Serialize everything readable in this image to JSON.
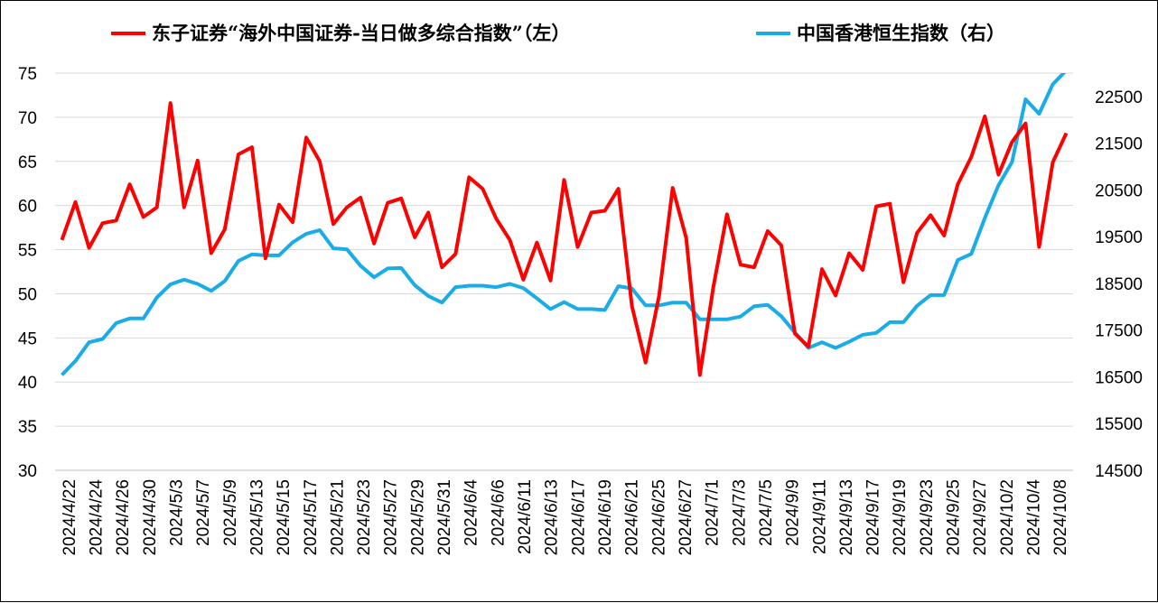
{
  "chart_data": {
    "type": "line",
    "title": "",
    "xlabel": "",
    "ylabel": "",
    "x_tick_labels": [
      "2024/4/22",
      "2024/4/24",
      "2024/4/26",
      "2024/4/30",
      "2024/5/3",
      "2024/5/7",
      "2024/5/9",
      "2024/5/13",
      "2024/5/15",
      "2024/5/17",
      "2024/5/21",
      "2024/5/23",
      "2024/5/27",
      "2024/5/29",
      "2024/5/31",
      "2024/6/4",
      "2024/6/6",
      "2024/6/11",
      "2024/6/13",
      "2024/6/17",
      "2024/6/19",
      "2024/6/21",
      "2024/6/25",
      "2024/6/27",
      "2024/7/1",
      "2024/7/3",
      "2024/7/5",
      "2024/9/9",
      "2024/9/11",
      "2024/9/13",
      "2024/9/17",
      "2024/9/19",
      "2024/9/23",
      "2024/9/25",
      "2024/9/27",
      "2024/10/2",
      "2024/10/4",
      "2024/10/8"
    ],
    "y_left": {
      "range": [
        30,
        75
      ],
      "ticks": [
        "30",
        "35",
        "40",
        "45",
        "50",
        "55",
        "60",
        "65",
        "70",
        "75"
      ]
    },
    "y_right": {
      "range": [
        14500,
        23000
      ],
      "ticks": [
        "14500",
        "15500",
        "16500",
        "17500",
        "18500",
        "19500",
        "20500",
        "21500",
        "22500"
      ]
    },
    "grid": true,
    "legend_position": "top",
    "series": [
      {
        "name": "东子证券“海外中国证券-当日做多综合指数”（左）",
        "axis": "left",
        "color": "#ff0000",
        "values": [
          56.1,
          60.4,
          55.2,
          58.0,
          58.3,
          62.4,
          58.7,
          59.8,
          71.6,
          59.8,
          65.1,
          54.6,
          57.3,
          65.8,
          66.6,
          54.0,
          60.1,
          58.1,
          67.7,
          65.0,
          57.9,
          59.8,
          60.9,
          55.7,
          60.3,
          60.8,
          56.4,
          59.2,
          53.0,
          54.5,
          63.2,
          61.9,
          58.5,
          56.1,
          51.6,
          55.8,
          51.5,
          62.9,
          55.3,
          59.2,
          59.4,
          61.9,
          48.6,
          42.2,
          49.8,
          62.0,
          56.3,
          40.8,
          50.8,
          59.0,
          53.3,
          53.0,
          57.1,
          55.5,
          45.5,
          44.0,
          52.8,
          49.8,
          54.6,
          52.7,
          59.9,
          60.2,
          51.3,
          56.9,
          58.9,
          56.6,
          62.4,
          65.5,
          70.1,
          63.5,
          67.2,
          69.3,
          55.3,
          64.9,
          68.2
        ]
      },
      {
        "name": "中国香港恒生指数（右）",
        "axis": "right",
        "color": "#1aace7",
        "values": [
          16540,
          16840,
          17240,
          17310,
          17650,
          17750,
          17750,
          18200,
          18480,
          18580,
          18490,
          18340,
          18550,
          18980,
          19120,
          19100,
          19100,
          19380,
          19560,
          19640,
          19250,
          19230,
          18880,
          18630,
          18820,
          18830,
          18460,
          18230,
          18090,
          18420,
          18450,
          18450,
          18420,
          18490,
          18400,
          18180,
          17950,
          18100,
          17950,
          17950,
          17930,
          18440,
          18390,
          18030,
          18030,
          18090,
          18090,
          17730,
          17730,
          17730,
          17790,
          18010,
          18040,
          17800,
          17450,
          17120,
          17240,
          17120,
          17250,
          17400,
          17440,
          17670,
          17670,
          18020,
          18250,
          18250,
          19000,
          19130,
          19900,
          20600,
          21100,
          22440,
          22130,
          22760,
          23060
        ]
      }
    ]
  }
}
